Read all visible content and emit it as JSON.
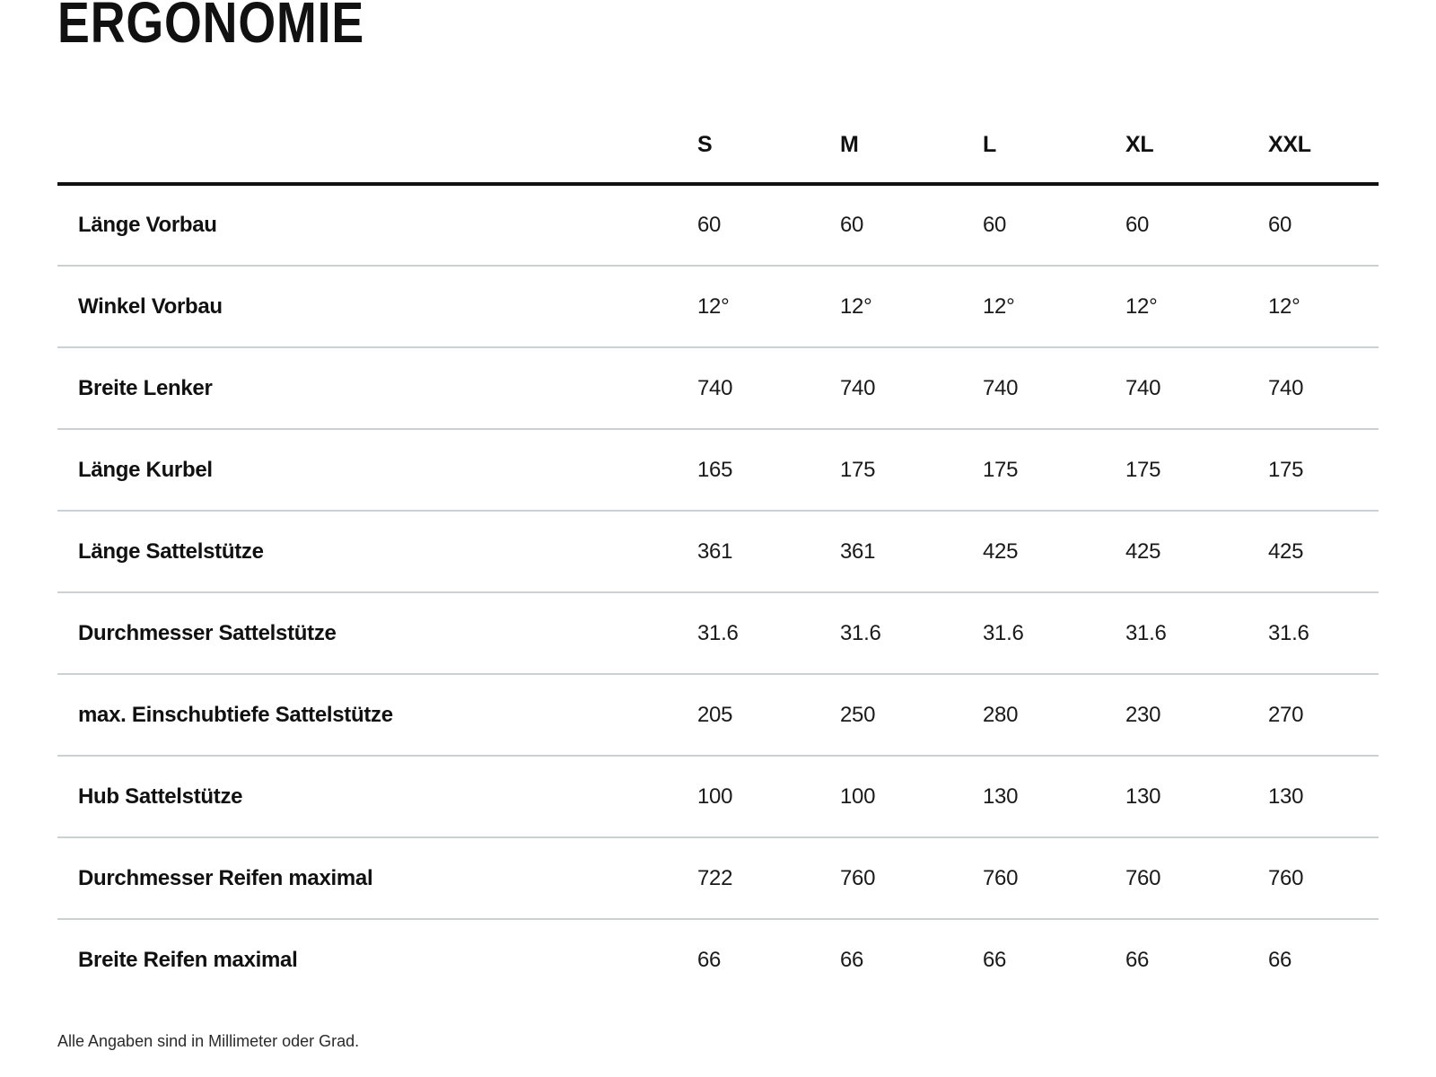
{
  "page": {
    "title": "ERGONOMIE",
    "footnote": "Alle Angaben sind in Millimeter oder Grad."
  },
  "colors": {
    "text": "#111111",
    "header_rule": "#111111",
    "row_divider": "#ccd1d4",
    "background": "#ffffff"
  },
  "table": {
    "size_headers": [
      "S",
      "M",
      "L",
      "XL",
      "XXL"
    ],
    "rows": [
      {
        "label": "Länge Vorbau",
        "values": [
          "60",
          "60",
          "60",
          "60",
          "60"
        ]
      },
      {
        "label": "Winkel Vorbau",
        "values": [
          "12°",
          "12°",
          "12°",
          "12°",
          "12°"
        ]
      },
      {
        "label": "Breite Lenker",
        "values": [
          "740",
          "740",
          "740",
          "740",
          "740"
        ]
      },
      {
        "label": "Länge Kurbel",
        "values": [
          "165",
          "175",
          "175",
          "175",
          "175"
        ]
      },
      {
        "label": "Länge Sattelstütze",
        "values": [
          "361",
          "361",
          "425",
          "425",
          "425"
        ]
      },
      {
        "label": "Durchmesser Sattelstütze",
        "values": [
          "31.6",
          "31.6",
          "31.6",
          "31.6",
          "31.6"
        ]
      },
      {
        "label": "max. Einschubtiefe Sattelstütze",
        "values": [
          "205",
          "250",
          "280",
          "230",
          "270"
        ]
      },
      {
        "label": "Hub Sattelstütze",
        "values": [
          "100",
          "100",
          "130",
          "130",
          "130"
        ]
      },
      {
        "label": "Durchmesser Reifen maximal",
        "values": [
          "722",
          "760",
          "760",
          "760",
          "760"
        ]
      },
      {
        "label": "Breite Reifen maximal",
        "values": [
          "66",
          "66",
          "66",
          "66",
          "66"
        ]
      }
    ]
  }
}
